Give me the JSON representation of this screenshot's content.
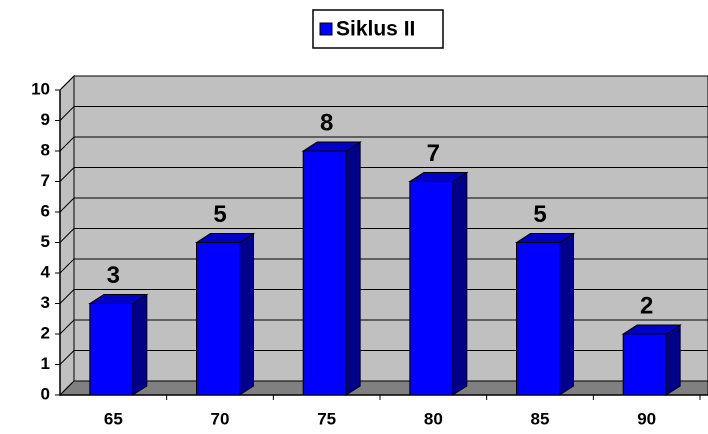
{
  "chart_data": {
    "type": "bar",
    "categories": [
      "65",
      "70",
      "75",
      "80",
      "85",
      "90"
    ],
    "series": [
      {
        "name": "Siklus II",
        "color": "#0000ff",
        "values": [
          3,
          5,
          8,
          7,
          5,
          2
        ]
      }
    ],
    "ylim": [
      0,
      10
    ],
    "yticks": [
      0,
      1,
      2,
      3,
      4,
      5,
      6,
      7,
      8,
      9,
      10
    ],
    "grid": true,
    "legend": "top",
    "data_labels": true
  }
}
